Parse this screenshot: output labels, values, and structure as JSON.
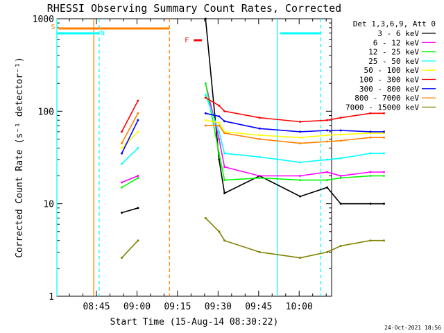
{
  "chart_data": {
    "type": "line",
    "title": "RHESSI Observing Summary Count Rates, Corrected",
    "xlabel": "Start Time (15-Aug-14 08:30:22)",
    "ylabel": "Corrected Count Rate (s⁻¹ detector⁻¹)",
    "y_scale": "log",
    "ylim": [
      1,
      1000
    ],
    "xlim": [
      "08:30:22",
      "10:12"
    ],
    "x_ticks": [
      "08:45",
      "09:00",
      "09:15",
      "09:30",
      "09:45",
      "10:00"
    ],
    "y_ticks": [
      "1",
      "10",
      "100",
      "1000"
    ],
    "legend_title": "Det 1,3,6,9, Att 0",
    "legend_position": "right",
    "timestamp": "24-Oct-2021 18:56",
    "flags": [
      {
        "label": "S",
        "color": "#ff8000",
        "start": "08:31",
        "end": "09:12"
      },
      {
        "label": "N",
        "color": "#00ffff",
        "start": "08:30:22",
        "end": "08:46"
      },
      {
        "label": "",
        "color": "#00ffff",
        "start": "09:53",
        "end": "10:08"
      },
      {
        "label": "F",
        "color": "#ff0000",
        "start": "09:21",
        "end": "09:24"
      }
    ],
    "markers": [
      {
        "color": "#00ffff",
        "time": "08:30:22",
        "style": "solid"
      },
      {
        "color": "#00ffff",
        "time": "08:46",
        "style": "dashed"
      },
      {
        "color": "#00ffff",
        "time": "09:52",
        "style": "solid"
      },
      {
        "color": "#00ffff",
        "time": "10:08",
        "style": "dashed"
      },
      {
        "color": "#ff8000",
        "time": "08:44",
        "style": "solid"
      },
      {
        "color": "#ff8000",
        "time": "09:12",
        "style": "dashed"
      }
    ],
    "x_minutes": [
      0,
      10,
      24,
      30,
      51,
      55,
      60,
      62,
      75,
      90,
      100,
      105,
      116,
      121
    ],
    "gaps_after_index": [
      4
    ],
    "series": [
      {
        "name": "3 - 6 keV",
        "color": "#000000",
        "values": [
          null,
          null,
          8,
          9,
          null,
          1000,
          30,
          13,
          20,
          12,
          15,
          10,
          10,
          10
        ]
      },
      {
        "name": "6 - 12 keV",
        "color": "#ff00ff",
        "values": [
          null,
          null,
          17,
          20,
          null,
          200,
          50,
          25,
          20,
          20,
          22,
          20,
          22,
          22
        ]
      },
      {
        "name": "12 - 25 keV",
        "color": "#00ff00",
        "values": [
          null,
          null,
          15,
          19,
          null,
          200,
          35,
          18,
          19,
          18,
          18,
          19,
          20,
          20
        ]
      },
      {
        "name": "25 - 50 keV",
        "color": "#00ffff",
        "values": [
          null,
          null,
          27,
          40,
          null,
          150,
          60,
          35,
          32,
          28,
          30,
          31,
          35,
          35
        ]
      },
      {
        "name": "50 - 100 keV",
        "color": "#ffff00",
        "values": [
          null,
          null,
          40,
          60,
          null,
          80,
          75,
          60,
          55,
          52,
          55,
          56,
          58,
          58
        ]
      },
      {
        "name": "100 - 300 keV",
        "color": "#ff0000",
        "values": [
          null,
          null,
          60,
          130,
          null,
          140,
          115,
          100,
          85,
          77,
          80,
          85,
          95,
          95
        ]
      },
      {
        "name": "300 - 800 keV",
        "color": "#0000ff",
        "values": [
          null,
          null,
          35,
          80,
          null,
          95,
          88,
          78,
          65,
          60,
          62,
          62,
          60,
          60
        ]
      },
      {
        "name": "800 - 7000 keV",
        "color": "#ff8000",
        "values": [
          null,
          null,
          45,
          95,
          null,
          70,
          70,
          58,
          50,
          45,
          47,
          48,
          52,
          52
        ]
      },
      {
        "name": "7000 - 15000 keV",
        "color": "#808000",
        "values": [
          null,
          null,
          2.6,
          4,
          null,
          7,
          5,
          4,
          3,
          2.6,
          3,
          3.5,
          4,
          4
        ]
      }
    ]
  }
}
